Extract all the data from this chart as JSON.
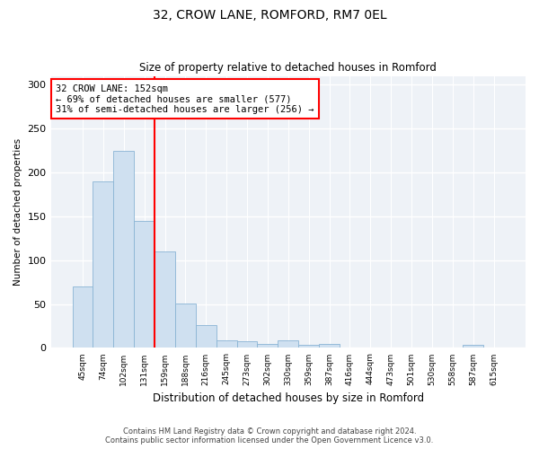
{
  "title1": "32, CROW LANE, ROMFORD, RM7 0EL",
  "title2": "Size of property relative to detached houses in Romford",
  "xlabel": "Distribution of detached houses by size in Romford",
  "ylabel": "Number of detached properties",
  "categories": [
    "45sqm",
    "74sqm",
    "102sqm",
    "131sqm",
    "159sqm",
    "188sqm",
    "216sqm",
    "245sqm",
    "273sqm",
    "302sqm",
    "330sqm",
    "359sqm",
    "387sqm",
    "416sqm",
    "444sqm",
    "473sqm",
    "501sqm",
    "530sqm",
    "558sqm",
    "587sqm",
    "615sqm"
  ],
  "values": [
    70,
    190,
    225,
    145,
    110,
    51,
    26,
    9,
    8,
    5,
    9,
    3,
    5,
    0,
    0,
    0,
    0,
    0,
    0,
    3,
    0
  ],
  "bar_color": "#cfe0f0",
  "bar_edge_color": "#8ab4d4",
  "vline_color": "red",
  "annotation_text": "32 CROW LANE: 152sqm\n← 69% of detached houses are smaller (577)\n31% of semi-detached houses are larger (256) →",
  "annotation_box_color": "white",
  "annotation_box_edge": "red",
  "ylim": [
    0,
    310
  ],
  "yticks": [
    0,
    50,
    100,
    150,
    200,
    250,
    300
  ],
  "footer1": "Contains HM Land Registry data © Crown copyright and database right 2024.",
  "footer2": "Contains public sector information licensed under the Open Government Licence v3.0.",
  "plot_bg_color": "#eef2f7"
}
